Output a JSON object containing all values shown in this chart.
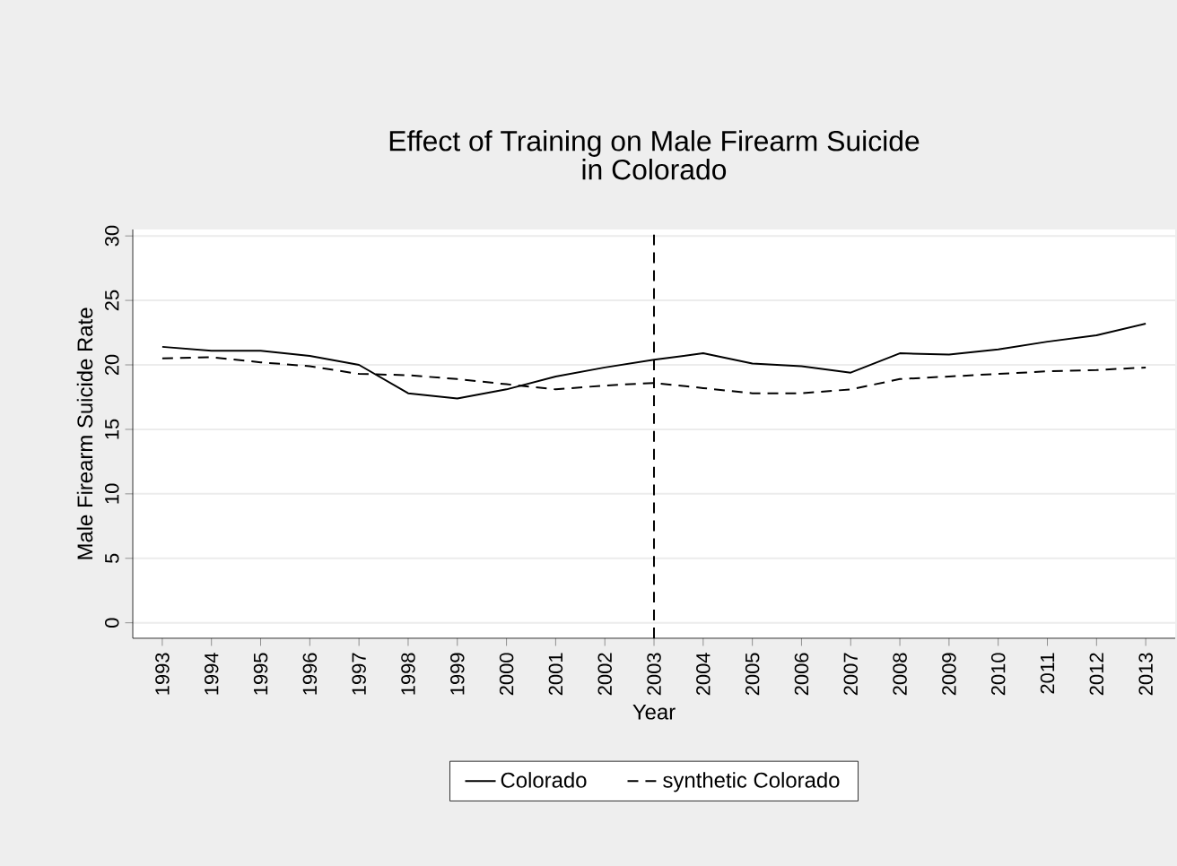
{
  "chart_data": {
    "type": "line",
    "title": "Effect of Training on Male Firearm Suicide\nin Colorado",
    "xlabel": "Year",
    "ylabel": "Male Firearm Suicide Rate",
    "x": [
      1993,
      1994,
      1995,
      1996,
      1997,
      1998,
      1999,
      2000,
      2001,
      2002,
      2003,
      2004,
      2005,
      2006,
      2007,
      2008,
      2009,
      2010,
      2011,
      2012,
      2013
    ],
    "series": [
      {
        "name": "Colorado",
        "color": "#000000",
        "line_style": "solid",
        "values": [
          21.4,
          21.1,
          21.1,
          20.7,
          20.0,
          17.8,
          17.4,
          18.1,
          19.1,
          19.8,
          20.4,
          20.9,
          20.1,
          19.9,
          19.4,
          20.9,
          20.8,
          21.2,
          21.8,
          22.3,
          23.2
        ]
      },
      {
        "name": "synthetic Colorado",
        "color": "#000000",
        "line_style": "dashed",
        "values": [
          20.5,
          20.6,
          20.2,
          19.9,
          19.3,
          19.2,
          18.9,
          18.5,
          18.1,
          18.4,
          18.6,
          18.2,
          17.8,
          17.8,
          18.1,
          18.9,
          19.1,
          19.3,
          19.5,
          19.6,
          19.8
        ]
      }
    ],
    "xlim": [
      1992.4,
      2013.6
    ],
    "ylim": [
      -1.2,
      30.5
    ],
    "xticks": [
      1993,
      1994,
      1995,
      1996,
      1997,
      1998,
      1999,
      2000,
      2001,
      2002,
      2003,
      2004,
      2005,
      2006,
      2007,
      2008,
      2009,
      2010,
      2011,
      2012,
      2013
    ],
    "yticks": [
      0,
      5,
      10,
      15,
      20,
      25,
      30
    ],
    "ref_lines": [
      {
        "axis": "x",
        "value": 2003,
        "line_style": "dashed",
        "color": "#000000"
      }
    ],
    "grid": "y",
    "legend": "bottom",
    "marker": "none"
  }
}
